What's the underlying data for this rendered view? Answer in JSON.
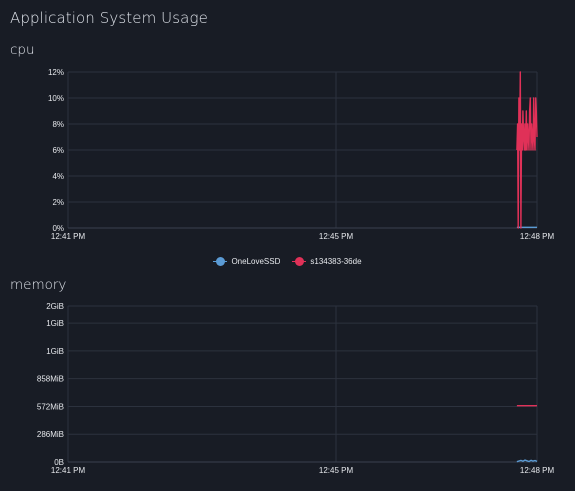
{
  "header": {
    "title": "Application System Usage"
  },
  "legend": {
    "items": [
      {
        "name": "OneLoveSSD",
        "color": "#5b9bd5"
      },
      {
        "name": "s134383-36de",
        "color": "#e03158"
      }
    ]
  },
  "chart_data": [
    {
      "type": "line",
      "title": "cpu",
      "x_ticks": [
        "12:41 PM",
        "12:45 PM",
        "12:48 PM"
      ],
      "x_range": [
        "12:41 PM",
        "12:48 PM"
      ],
      "y_ticks": [
        "0%",
        "2%",
        "4%",
        "6%",
        "8%",
        "10%",
        "12%"
      ],
      "ylim": [
        0,
        12
      ],
      "grid": true,
      "series": [
        {
          "name": "OneLoveSSD",
          "color": "#5b9bd5",
          "x": [
            6.7,
            7.0
          ],
          "y": [
            0.05,
            0.05
          ]
        },
        {
          "name": "s134383-36de",
          "color": "#e03158",
          "x": [
            6.7,
            6.71,
            6.72,
            6.73,
            6.74,
            6.75,
            6.76,
            6.77,
            6.78,
            6.79,
            6.8,
            6.81,
            6.82,
            6.83,
            6.84,
            6.85,
            6.86,
            6.87,
            6.88,
            6.89,
            6.9,
            6.91,
            6.92,
            6.93,
            6.94,
            6.95,
            6.96,
            6.97,
            6.98,
            6.99,
            7.0
          ],
          "y": [
            6,
            8,
            0,
            10,
            6,
            12,
            0,
            8,
            6,
            9,
            7,
            6,
            8,
            6,
            9,
            6,
            8,
            7,
            6,
            9,
            10,
            6,
            8,
            7,
            6,
            10,
            7,
            6,
            10,
            9,
            7
          ]
        }
      ]
    },
    {
      "type": "line",
      "title": "memory",
      "x_ticks": [
        "12:41 PM",
        "12:45 PM",
        "12:48 PM"
      ],
      "x_range": [
        "12:41 PM",
        "12:48 PM"
      ],
      "y_ticks": [
        "0B",
        "286MiB",
        "572MiB",
        "858MiB",
        "1GiB",
        "1GiB",
        "2GiB"
      ],
      "ylim_mib": [
        0,
        1606
      ],
      "grid": true,
      "series": [
        {
          "name": "OneLoveSSD",
          "color": "#5b9bd5",
          "x": [
            6.7,
            6.73,
            6.76,
            6.79,
            6.82,
            6.85,
            6.88,
            6.91,
            6.94,
            6.97,
            7.0
          ],
          "y": [
            3,
            10,
            16,
            8,
            20,
            12,
            5,
            18,
            9,
            15,
            6
          ]
        },
        {
          "name": "s134383-36de",
          "color": "#e03158",
          "x": [
            6.7,
            7.0
          ],
          "y": [
            580,
            580
          ]
        }
      ]
    }
  ]
}
